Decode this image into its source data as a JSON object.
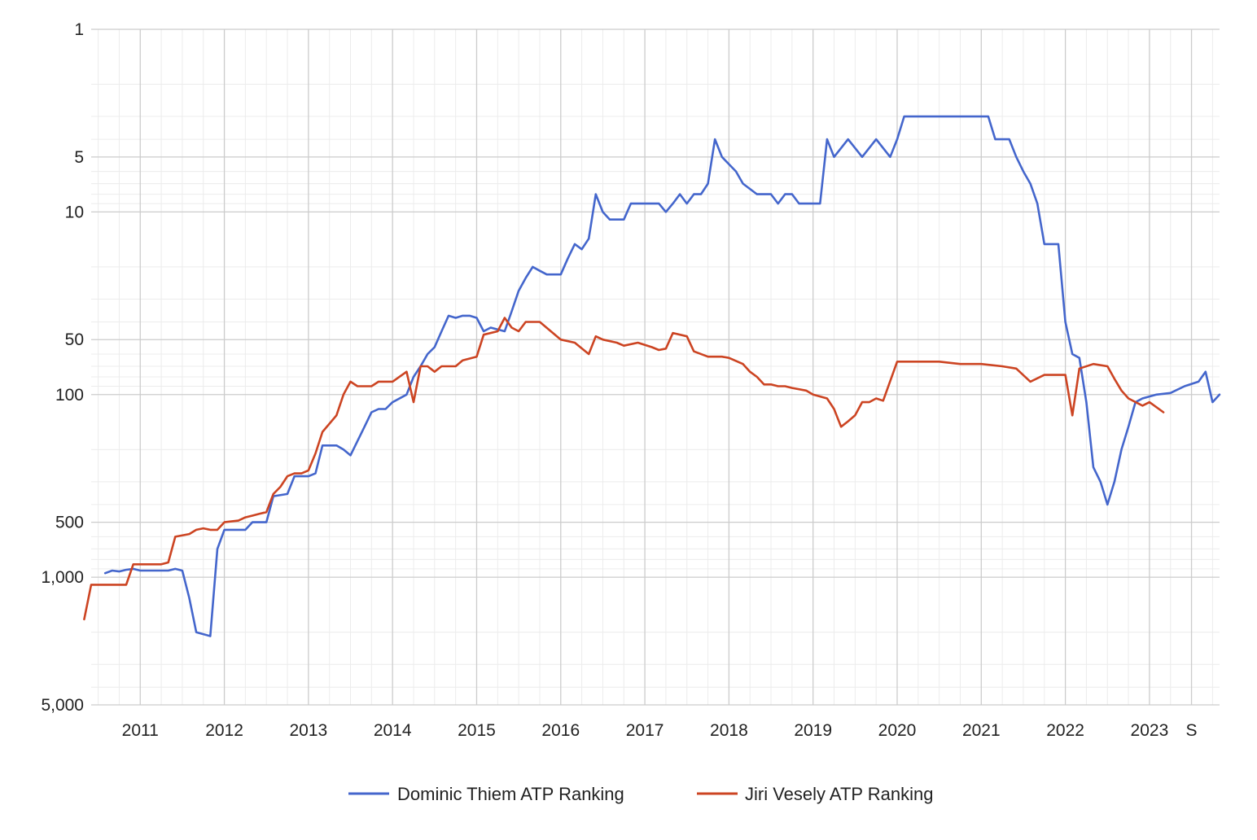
{
  "chart_data": {
    "type": "line",
    "title": "",
    "xlabel": "",
    "ylabel": "",
    "y_scale": "log",
    "y_reversed": true,
    "ylim": [
      1,
      5000
    ],
    "xlim": [
      "2010-06",
      "2023-11"
    ],
    "grid": true,
    "legend_position": "bottom",
    "y_ticks": [
      {
        "value": 1,
        "label": "1"
      },
      {
        "value": 5,
        "label": "5"
      },
      {
        "value": 10,
        "label": "10"
      },
      {
        "value": 50,
        "label": "50"
      },
      {
        "value": 100,
        "label": "100"
      },
      {
        "value": 500,
        "label": "500"
      },
      {
        "value": 1000,
        "label": "1,000"
      },
      {
        "value": 5000,
        "label": "5,000"
      }
    ],
    "x_ticks": [
      {
        "value": "2011-01",
        "label": "2011"
      },
      {
        "value": "2012-01",
        "label": "2012"
      },
      {
        "value": "2013-01",
        "label": "2013"
      },
      {
        "value": "2014-01",
        "label": "2014"
      },
      {
        "value": "2015-01",
        "label": "2015"
      },
      {
        "value": "2016-01",
        "label": "2016"
      },
      {
        "value": "2017-01",
        "label": "2017"
      },
      {
        "value": "2018-01",
        "label": "2018"
      },
      {
        "value": "2019-01",
        "label": "2019"
      },
      {
        "value": "2020-01",
        "label": "2020"
      },
      {
        "value": "2021-01",
        "label": "2021"
      },
      {
        "value": "2022-01",
        "label": "2022"
      },
      {
        "value": "2023-01",
        "label": "2023"
      },
      {
        "value": "2023-07",
        "label": "S"
      }
    ],
    "series": [
      {
        "name": "Dominic Thiem ATP Ranking",
        "color": "#4466cc",
        "points": [
          [
            "2010-08",
            950
          ],
          [
            "2010-09",
            920
          ],
          [
            "2010-10",
            930
          ],
          [
            "2010-11",
            910
          ],
          [
            "2010-12",
            900
          ],
          [
            "2011-01",
            920
          ],
          [
            "2011-03",
            920
          ],
          [
            "2011-05",
            920
          ],
          [
            "2011-06",
            900
          ],
          [
            "2011-07",
            920
          ],
          [
            "2011-08",
            1300
          ],
          [
            "2011-09",
            2000
          ],
          [
            "2011-10",
            2050
          ],
          [
            "2011-11",
            2100
          ],
          [
            "2011-12",
            700
          ],
          [
            "2012-01",
            550
          ],
          [
            "2012-04",
            550
          ],
          [
            "2012-05",
            500
          ],
          [
            "2012-07",
            500
          ],
          [
            "2012-08",
            360
          ],
          [
            "2012-10",
            350
          ],
          [
            "2012-11",
            280
          ],
          [
            "2013-01",
            280
          ],
          [
            "2013-02",
            270
          ],
          [
            "2013-03",
            190
          ],
          [
            "2013-05",
            190
          ],
          [
            "2013-06",
            200
          ],
          [
            "2013-07",
            215
          ],
          [
            "2013-09",
            150
          ],
          [
            "2013-10",
            125
          ],
          [
            "2013-11",
            120
          ],
          [
            "2013-12",
            120
          ],
          [
            "2014-01",
            110
          ],
          [
            "2014-03",
            100
          ],
          [
            "2014-04",
            80
          ],
          [
            "2014-05",
            70
          ],
          [
            "2014-06",
            60
          ],
          [
            "2014-07",
            55
          ],
          [
            "2014-08",
            45
          ],
          [
            "2014-09",
            37
          ],
          [
            "2014-10",
            38
          ],
          [
            "2014-11",
            37
          ],
          [
            "2014-12",
            37
          ],
          [
            "2015-01",
            38
          ],
          [
            "2015-02",
            45
          ],
          [
            "2015-03",
            43
          ],
          [
            "2015-04",
            44
          ],
          [
            "2015-05",
            45
          ],
          [
            "2015-06",
            35
          ],
          [
            "2015-07",
            27
          ],
          [
            "2015-08",
            23
          ],
          [
            "2015-09",
            20
          ],
          [
            "2015-10",
            21
          ],
          [
            "2015-11",
            22
          ],
          [
            "2016-01",
            22
          ],
          [
            "2016-02",
            18
          ],
          [
            "2016-03",
            15
          ],
          [
            "2016-04",
            16
          ],
          [
            "2016-05",
            14
          ],
          [
            "2016-06",
            8
          ],
          [
            "2016-07",
            10
          ],
          [
            "2016-08",
            11
          ],
          [
            "2016-09",
            11
          ],
          [
            "2016-10",
            11
          ],
          [
            "2016-11",
            9
          ],
          [
            "2016-12",
            9
          ],
          [
            "2017-01",
            9
          ],
          [
            "2017-02",
            9
          ],
          [
            "2017-03",
            9
          ],
          [
            "2017-04",
            10
          ],
          [
            "2017-05",
            9
          ],
          [
            "2017-06",
            8
          ],
          [
            "2017-07",
            9
          ],
          [
            "2017-08",
            8
          ],
          [
            "2017-09",
            8
          ],
          [
            "2017-10",
            7
          ],
          [
            "2017-11",
            4
          ],
          [
            "2017-12",
            5
          ],
          [
            "2018-02",
            6
          ],
          [
            "2018-03",
            7
          ],
          [
            "2018-05",
            8
          ],
          [
            "2018-07",
            8
          ],
          [
            "2018-08",
            9
          ],
          [
            "2018-09",
            8
          ],
          [
            "2018-10",
            8
          ],
          [
            "2018-11",
            9
          ],
          [
            "2018-12",
            9
          ],
          [
            "2019-01",
            9
          ],
          [
            "2019-02",
            9
          ],
          [
            "2019-03",
            4
          ],
          [
            "2019-04",
            5
          ],
          [
            "2019-06",
            4
          ],
          [
            "2019-08",
            5
          ],
          [
            "2019-10",
            4
          ],
          [
            "2019-12",
            5
          ],
          [
            "2020-01",
            4
          ],
          [
            "2020-02",
            3
          ],
          [
            "2020-06",
            3
          ],
          [
            "2020-10",
            3
          ],
          [
            "2021-02",
            3
          ],
          [
            "2021-03",
            4
          ],
          [
            "2021-05",
            4
          ],
          [
            "2021-06",
            5
          ],
          [
            "2021-07",
            6
          ],
          [
            "2021-08",
            7
          ],
          [
            "2021-09",
            9
          ],
          [
            "2021-10",
            15
          ],
          [
            "2021-12",
            15
          ],
          [
            "2022-01",
            40
          ],
          [
            "2022-02",
            60
          ],
          [
            "2022-03",
            63
          ],
          [
            "2022-04",
            110
          ],
          [
            "2022-05",
            250
          ],
          [
            "2022-06",
            300
          ],
          [
            "2022-07",
            400
          ],
          [
            "2022-08",
            300
          ],
          [
            "2022-09",
            200
          ],
          [
            "2022-10",
            150
          ],
          [
            "2022-11",
            110
          ],
          [
            "2022-12",
            105
          ],
          [
            "2023-02",
            100
          ],
          [
            "2023-04",
            98
          ],
          [
            "2023-06",
            90
          ],
          [
            "2023-08",
            85
          ],
          [
            "2023-09",
            75
          ],
          [
            "2023-10",
            110
          ],
          [
            "2023-11",
            100
          ]
        ]
      },
      {
        "name": "Jiri Vesely ATP Ranking",
        "color": "#cc4422",
        "points": [
          [
            "2010-05",
            1700
          ],
          [
            "2010-06",
            1100
          ],
          [
            "2010-07",
            1100
          ],
          [
            "2010-09",
            1100
          ],
          [
            "2010-11",
            1100
          ],
          [
            "2010-12",
            850
          ],
          [
            "2011-02",
            850
          ],
          [
            "2011-04",
            850
          ],
          [
            "2011-05",
            830
          ],
          [
            "2011-06",
            600
          ],
          [
            "2011-08",
            580
          ],
          [
            "2011-09",
            550
          ],
          [
            "2011-10",
            540
          ],
          [
            "2011-11",
            550
          ],
          [
            "2011-12",
            550
          ],
          [
            "2012-01",
            500
          ],
          [
            "2012-03",
            490
          ],
          [
            "2012-04",
            470
          ],
          [
            "2012-05",
            460
          ],
          [
            "2012-06",
            450
          ],
          [
            "2012-07",
            440
          ],
          [
            "2012-08",
            350
          ],
          [
            "2012-09",
            320
          ],
          [
            "2012-10",
            280
          ],
          [
            "2012-11",
            270
          ],
          [
            "2012-12",
            270
          ],
          [
            "2013-01",
            260
          ],
          [
            "2013-02",
            210
          ],
          [
            "2013-03",
            160
          ],
          [
            "2013-05",
            130
          ],
          [
            "2013-06",
            100
          ],
          [
            "2013-07",
            85
          ],
          [
            "2013-08",
            90
          ],
          [
            "2013-10",
            90
          ],
          [
            "2013-11",
            85
          ],
          [
            "2014-01",
            85
          ],
          [
            "2014-03",
            75
          ],
          [
            "2014-04",
            110
          ],
          [
            "2014-05",
            70
          ],
          [
            "2014-06",
            70
          ],
          [
            "2014-07",
            75
          ],
          [
            "2014-08",
            70
          ],
          [
            "2014-10",
            70
          ],
          [
            "2014-11",
            65
          ],
          [
            "2015-01",
            62
          ],
          [
            "2015-02",
            47
          ],
          [
            "2015-04",
            45
          ],
          [
            "2015-05",
            38
          ],
          [
            "2015-06",
            43
          ],
          [
            "2015-07",
            45
          ],
          [
            "2015-08",
            40
          ],
          [
            "2015-10",
            40
          ],
          [
            "2016-01",
            50
          ],
          [
            "2016-03",
            52
          ],
          [
            "2016-05",
            60
          ],
          [
            "2016-06",
            48
          ],
          [
            "2016-07",
            50
          ],
          [
            "2016-09",
            52
          ],
          [
            "2016-10",
            54
          ],
          [
            "2016-12",
            52
          ],
          [
            "2017-02",
            55
          ],
          [
            "2017-03",
            57
          ],
          [
            "2017-04",
            56
          ],
          [
            "2017-05",
            46
          ],
          [
            "2017-07",
            48
          ],
          [
            "2017-08",
            58
          ],
          [
            "2017-10",
            62
          ],
          [
            "2017-12",
            62
          ],
          [
            "2018-01",
            63
          ],
          [
            "2018-03",
            68
          ],
          [
            "2018-04",
            75
          ],
          [
            "2018-05",
            80
          ],
          [
            "2018-06",
            88
          ],
          [
            "2018-07",
            88
          ],
          [
            "2018-08",
            90
          ],
          [
            "2018-09",
            90
          ],
          [
            "2018-10",
            92
          ],
          [
            "2018-12",
            95
          ],
          [
            "2019-01",
            100
          ],
          [
            "2019-03",
            105
          ],
          [
            "2019-04",
            120
          ],
          [
            "2019-05",
            150
          ],
          [
            "2019-06",
            140
          ],
          [
            "2019-07",
            130
          ],
          [
            "2019-08",
            110
          ],
          [
            "2019-09",
            110
          ],
          [
            "2019-10",
            105
          ],
          [
            "2019-11",
            108
          ],
          [
            "2020-01",
            66
          ],
          [
            "2020-04",
            66
          ],
          [
            "2020-07",
            66
          ],
          [
            "2020-10",
            68
          ],
          [
            "2021-01",
            68
          ],
          [
            "2021-04",
            70
          ],
          [
            "2021-06",
            72
          ],
          [
            "2021-08",
            85
          ],
          [
            "2021-10",
            78
          ],
          [
            "2022-01",
            78
          ],
          [
            "2022-02",
            130
          ],
          [
            "2022-03",
            72
          ],
          [
            "2022-05",
            68
          ],
          [
            "2022-07",
            70
          ],
          [
            "2022-08",
            82
          ],
          [
            "2022-09",
            95
          ],
          [
            "2022-10",
            105
          ],
          [
            "2022-12",
            115
          ],
          [
            "2023-01",
            110
          ],
          [
            "2023-03",
            125
          ]
        ]
      }
    ]
  }
}
